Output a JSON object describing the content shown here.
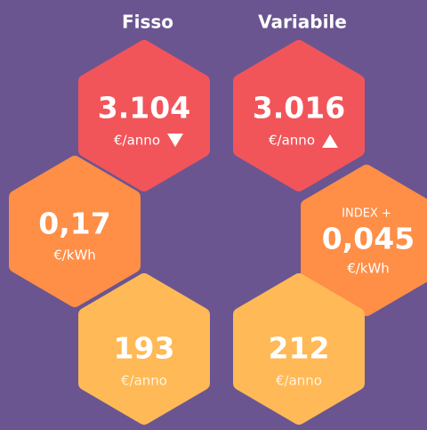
{
  "headers": [
    "Fisso",
    "Variabile"
  ],
  "cells": [
    {
      "value": "3.104",
      "unit": "€/anno"
    },
    {
      "value": "3.016",
      "unit": "€/anno"
    },
    {
      "value": "0,17",
      "unit": "€/kWh"
    },
    {
      "label": "INDEX +",
      "value": "0,045",
      "unit": "€/kWh"
    },
    {
      "value": "193",
      "unit": "€/anno"
    },
    {
      "value": "212",
      "unit": "€/anno"
    }
  ]
}
